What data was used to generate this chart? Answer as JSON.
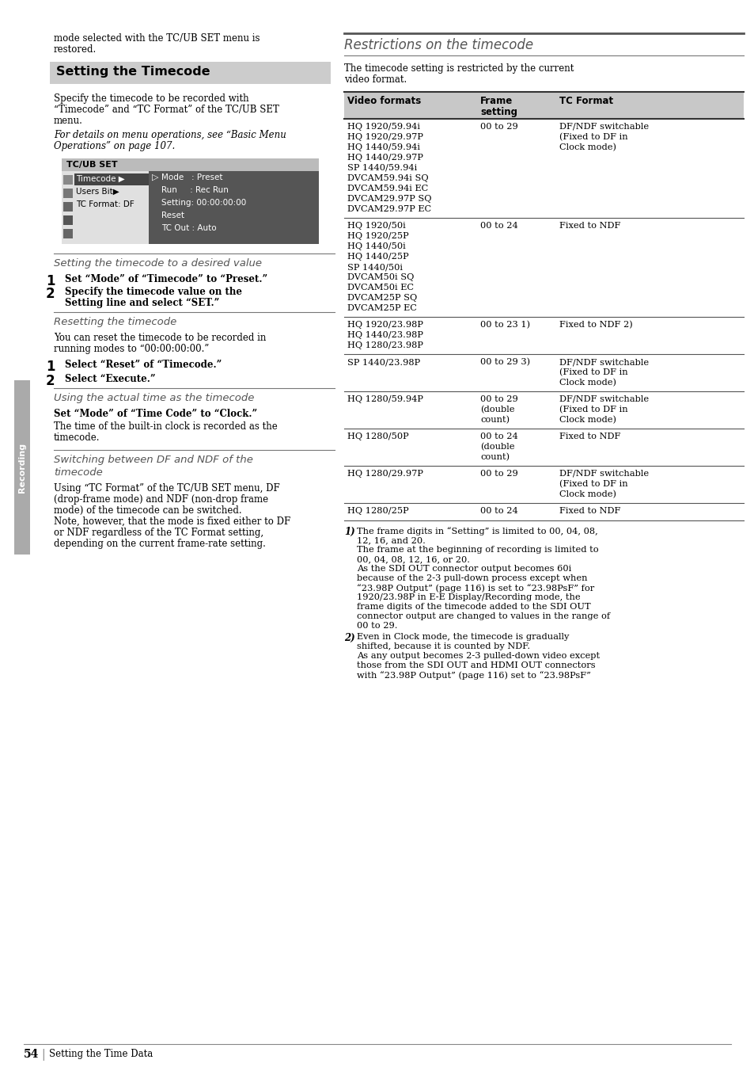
{
  "page_bg": "#ffffff",
  "top_intro_text": "mode selected with the TC/UB SET menu is\nrestored.",
  "section1_title": "Setting the Timecode",
  "section1_body": "Specify the timecode to be recorded with\n“Timecode” and “TC Format” of the TC/UB SET\nmenu.",
  "section1_italic": "For details on menu operations, see “Basic Menu\nOperations” on page 107.",
  "subsection1_title": "Setting the timecode to a desired value",
  "step1a": "Set “Mode” of “Timecode” to “Preset.”",
  "step2a_line1": "Specify the timecode value on the",
  "step2a_line2": "Setting line and select “SET.”",
  "subsection2_title": "Resetting the timecode",
  "subsection2_body": "You can reset the timecode to be recorded in\nrunning modes to “00:00:00:00.”",
  "step1b": "Select “Reset” of “Timecode.”",
  "step2b": "Select “Execute.”",
  "subsection3_title": "Using the actual time as the timecode",
  "subsection3_bold": "Set “Mode” of “Time Code” to “Clock.”",
  "subsection3_body": "The time of the built-in clock is recorded as the\ntimecode.",
  "subsection4_title_line1": "Switching between DF and NDF of the",
  "subsection4_title_line2": "timecode",
  "subsection4_body": "Using “TC Format” of the TC/UB SET menu, DF\n(drop-frame mode) and NDF (non-drop frame\nmode) of the timecode can be switched.\nNote, however, that the mode is fixed either to DF\nor NDF regardless of the TC Format setting,\ndepending on the current frame-rate setting.",
  "right_section_title": "Restrictions on the timecode",
  "right_intro": "The timecode setting is restricted by the current\nvideo format.",
  "table_header": [
    "Video formats",
    "Frame\nsetting",
    "TC Format"
  ],
  "table_rows": [
    [
      "HQ 1920/59.94i\nHQ 1920/29.97P\nHQ 1440/59.94i\nHQ 1440/29.97P\nSP 1440/59.94i\nDVCAM59.94i SQ\nDVCAM59.94i EC\nDVCAM29.97P SQ\nDVCAM29.97P EC",
      "00 to 29",
      "DF/NDF switchable\n(Fixed to DF in\nClock mode)"
    ],
    [
      "HQ 1920/50i\nHQ 1920/25P\nHQ 1440/50i\nHQ 1440/25P\nSP 1440/50i\nDVCAM50i SQ\nDVCAM50i EC\nDVCAM25P SQ\nDVCAM25P EC",
      "00 to 24",
      "Fixed to NDF"
    ],
    [
      "HQ 1920/23.98P\nHQ 1440/23.98P\nHQ 1280/23.98P",
      "00 to 23 1)",
      "Fixed to NDF 2)"
    ],
    [
      "SP 1440/23.98P",
      "00 to 29 3)",
      "DF/NDF switchable\n(Fixed to DF in\nClock mode)"
    ],
    [
      "HQ 1280/59.94P",
      "00 to 29\n(double\ncount)",
      "DF/NDF switchable\n(Fixed to DF in\nClock mode)"
    ],
    [
      "HQ 1280/50P",
      "00 to 24\n(double\ncount)",
      "Fixed to NDF"
    ],
    [
      "HQ 1280/29.97P",
      "00 to 29",
      "DF/NDF switchable\n(Fixed to DF in\nClock mode)"
    ],
    [
      "HQ 1280/25P",
      "00 to 24",
      "Fixed to NDF"
    ]
  ],
  "footnote1_label": "1)",
  "footnote1_body": "The frame digits in “Setting” is limited to 00, 04, 08,\n   12, 16, and 20.\n   The frame at the beginning of recording is limited to\n   00, 04, 08, 12, 16, or 20.\n   As the SDI OUT connector output becomes 60i\n   because of the 2-3 pull-down process except when\n   “23.98P Output” (page 116) is set to “23.98PsF” for\n   1920/23.98P in E-E Display/Recording mode, the\n   frame digits of the timecode added to the SDI OUT\n   connector output are changed to values in the range of\n   00 to 29.",
  "footnote2_label": "2)",
  "footnote2_body": "Even in Clock mode, the timecode is gradually\n   shifted, because it is counted by NDF.\n   As any output becomes 2-3 pulled-down video except\n   those from the SDI OUT and HDMI OUT connectors\n   with “23.98P Output” (page 116) set to “23.98PsF”",
  "page_number": "54",
  "page_footer": "Setting the Time Data",
  "sidebar_text": "Recording",
  "menu_title": "TC/UB SET",
  "menu_left": [
    "Timecode ▶",
    "Users Bit▶",
    "TC Format: DF"
  ],
  "menu_right": [
    "Mode   : Preset",
    "Run     : Rec Run",
    "Setting: 00:00:00:00",
    "Reset",
    "TC Out : Auto"
  ]
}
